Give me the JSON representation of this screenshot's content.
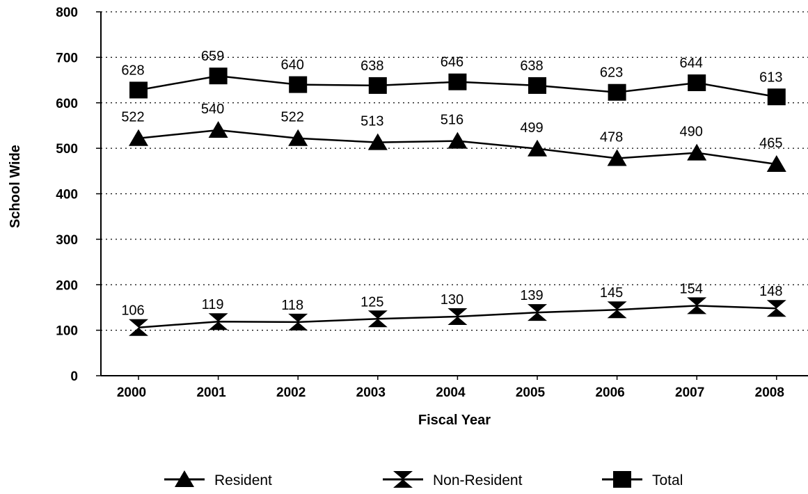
{
  "chart_data": {
    "type": "line",
    "xlabel": "Fiscal Year",
    "ylabel": "School Wide",
    "categories": [
      "2000",
      "2001",
      "2002",
      "2003",
      "2004",
      "2005",
      "2006",
      "2007",
      "2008"
    ],
    "ylim": [
      0,
      800
    ],
    "yticks": [
      "0",
      "100",
      "200",
      "300",
      "400",
      "500",
      "600",
      "700",
      "800"
    ],
    "grid": "horizontal dotted",
    "legend_position": "bottom",
    "data_labels": true,
    "series": [
      {
        "name": "Resident",
        "marker": "triangle",
        "color": "#000000",
        "values": [
          522,
          540,
          522,
          513,
          516,
          499,
          478,
          490,
          465
        ]
      },
      {
        "name": "Non-Resident",
        "marker": "hourglass",
        "color": "#000000",
        "values": [
          106,
          119,
          118,
          125,
          130,
          139,
          145,
          154,
          148
        ]
      },
      {
        "name": "Total",
        "marker": "square",
        "color": "#000000",
        "values": [
          628,
          659,
          640,
          638,
          646,
          638,
          623,
          644,
          613
        ]
      }
    ]
  }
}
